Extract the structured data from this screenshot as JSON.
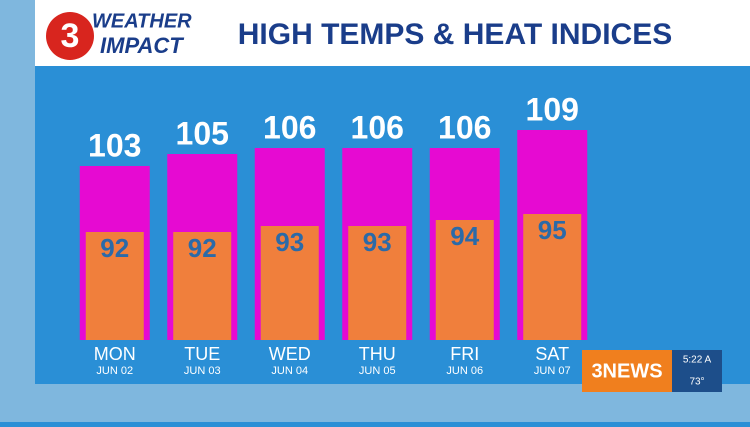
{
  "header": {
    "logo_number": "3",
    "logo_top": "WEATHER",
    "logo_bottom": "IMPACT",
    "title": "HIGH TEMPS & HEAT INDICES"
  },
  "chart_data": {
    "type": "bar",
    "categories": [
      "MON",
      "TUE",
      "WED",
      "THU",
      "FRI",
      "SAT"
    ],
    "dates": [
      "JUN 02",
      "JUN 03",
      "JUN 04",
      "JUN 05",
      "JUN 06",
      "JUN 07"
    ],
    "series": [
      {
        "color": "#e60ad2",
        "label_color": "#ffffff",
        "values": [
          103,
          105,
          106,
          106,
          106,
          109
        ]
      },
      {
        "color": "#f07f3c",
        "label_color": "#2b6aa8",
        "values": [
          92,
          92,
          93,
          93,
          94,
          95
        ]
      }
    ],
    "ylim": [
      74,
      120
    ]
  },
  "overlay": {
    "station": "3NEWS",
    "time": "5:22 A",
    "temp": "73°"
  }
}
